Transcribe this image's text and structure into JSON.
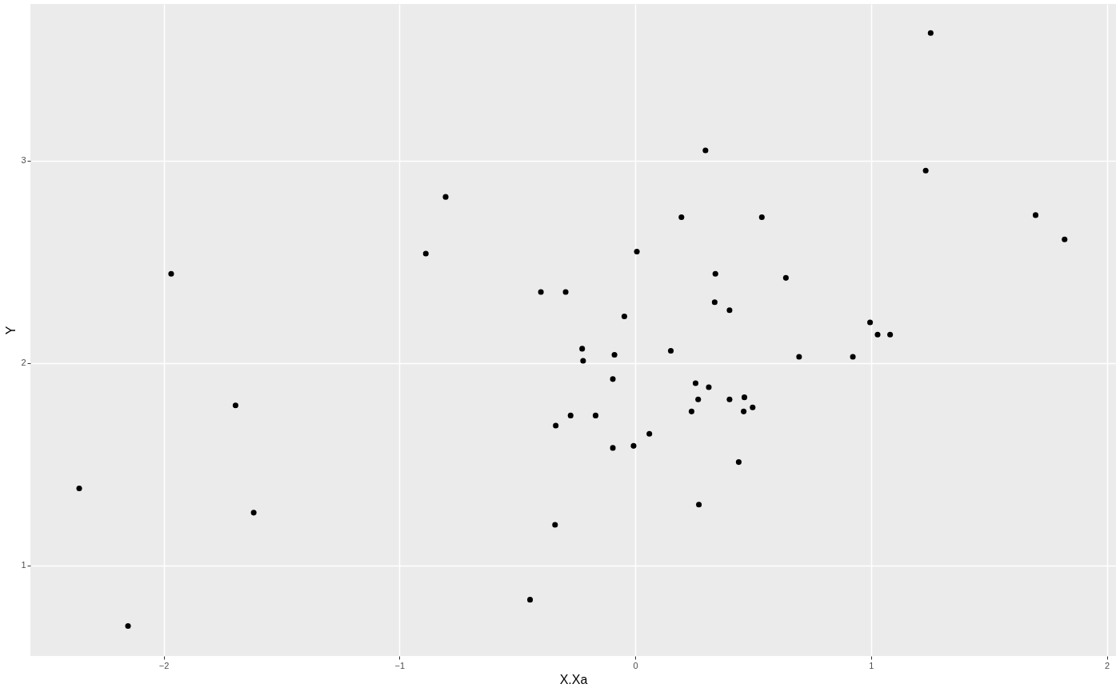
{
  "chart_data": {
    "type": "scatter",
    "xlabel": "X.Xa",
    "ylabel": "Y",
    "x": [
      1.253,
      1.232,
      0.298,
      -0.804,
      -0.888,
      -1.968,
      0.196,
      0.537,
      1.698,
      1.821,
      0.007,
      0.34,
      0.639,
      -0.4,
      -0.295,
      0.337,
      0.4,
      -0.046,
      0.996,
      1.028,
      1.081,
      0.151,
      -0.225,
      -0.221,
      -0.088,
      0.695,
      0.923,
      -0.095,
      0.256,
      0.312,
      -1.695,
      0.4,
      0.267,
      0.463,
      0.239,
      0.46,
      0.498,
      -0.274,
      -0.168,
      -0.337,
      0.06,
      -0.095,
      -0.007,
      0.439,
      -2.358,
      -1.618,
      0.27,
      -0.34,
      -0.446,
      -2.151
    ],
    "values": [
      3.63,
      2.95,
      3.05,
      2.82,
      2.54,
      2.44,
      2.72,
      2.72,
      2.73,
      2.61,
      2.55,
      2.44,
      2.42,
      2.35,
      2.35,
      2.3,
      2.26,
      2.23,
      2.2,
      2.14,
      2.14,
      2.06,
      2.07,
      2.01,
      2.04,
      2.03,
      2.03,
      1.92,
      1.9,
      1.88,
      1.79,
      1.82,
      1.82,
      1.83,
      1.76,
      1.76,
      1.78,
      1.74,
      1.74,
      1.69,
      1.65,
      1.58,
      1.59,
      1.51,
      1.38,
      1.26,
      1.3,
      1.2,
      0.83,
      0.7
    ],
    "color": "#000000",
    "marker": "circle",
    "grid": true,
    "xlim": [
      -2.565,
      2.039
    ],
    "ylim": [
      0.552,
      3.773
    ],
    "xticks": [
      -2,
      -1,
      0,
      1,
      2
    ],
    "yticks": [
      1,
      2,
      3
    ]
  }
}
